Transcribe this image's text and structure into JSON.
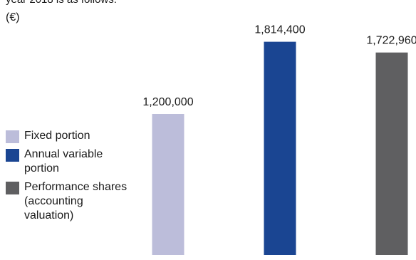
{
  "intro_text": "year 2018 is as follows:",
  "chart_data": {
    "type": "bar",
    "unit_label": "(€)",
    "categories": [
      "Fixed portion",
      "Annual variable portion",
      "Performance shares (accounting valuation)"
    ],
    "values": [
      1200000,
      1814400,
      1722960
    ],
    "value_labels": [
      "1,200,000",
      "1,814,400",
      "1,722,960"
    ],
    "colors": [
      "#bcbdda",
      "#1a4592",
      "#5f5f61"
    ],
    "legend_position": "left",
    "grid": false,
    "ylim": [
      0,
      2000000
    ]
  },
  "legend": [
    {
      "label": "Fixed portion",
      "color": "#bcbdda"
    },
    {
      "label": "Annual variable portion",
      "color": "#1a4592"
    },
    {
      "label": "Performance shares (accounting valuation)",
      "color": "#5f5f61"
    }
  ]
}
